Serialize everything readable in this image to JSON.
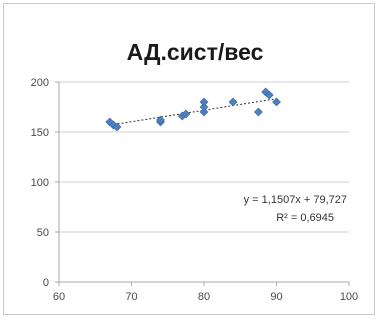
{
  "chart_data": {
    "type": "scatter",
    "title": "АД.сист/вес",
    "xlabel": "",
    "ylabel": "",
    "xlim": [
      60,
      100
    ],
    "ylim": [
      0,
      200
    ],
    "x_ticks": [
      60,
      70,
      80,
      90,
      100
    ],
    "y_ticks": [
      0,
      50,
      100,
      150,
      200
    ],
    "x_tick_labels": [
      "60",
      "70",
      "80",
      "90",
      "100"
    ],
    "y_tick_labels": [
      "0",
      "50",
      "100",
      "150",
      "200"
    ],
    "grid": "horizontal",
    "series": [
      {
        "color": "#4f7fbf",
        "points": [
          [
            67,
            160
          ],
          [
            67.5,
            157
          ],
          [
            68,
            155
          ],
          [
            74,
            160
          ],
          [
            74,
            162
          ],
          [
            77,
            166
          ],
          [
            77.5,
            168
          ],
          [
            80,
            170
          ],
          [
            80,
            175
          ],
          [
            80,
            180
          ],
          [
            84,
            180
          ],
          [
            87.5,
            170
          ],
          [
            88.5,
            190
          ],
          [
            89,
            187
          ],
          [
            90,
            180
          ]
        ]
      }
    ],
    "trendline": {
      "type": "linear",
      "slope": 1.1507,
      "intercept": 79.727,
      "x_range": [
        67,
        90
      ],
      "color": "#333333"
    },
    "annotations": {
      "equation": "y = 1,1507x + 79,727",
      "r_squared": "R² = 0,6945"
    }
  }
}
